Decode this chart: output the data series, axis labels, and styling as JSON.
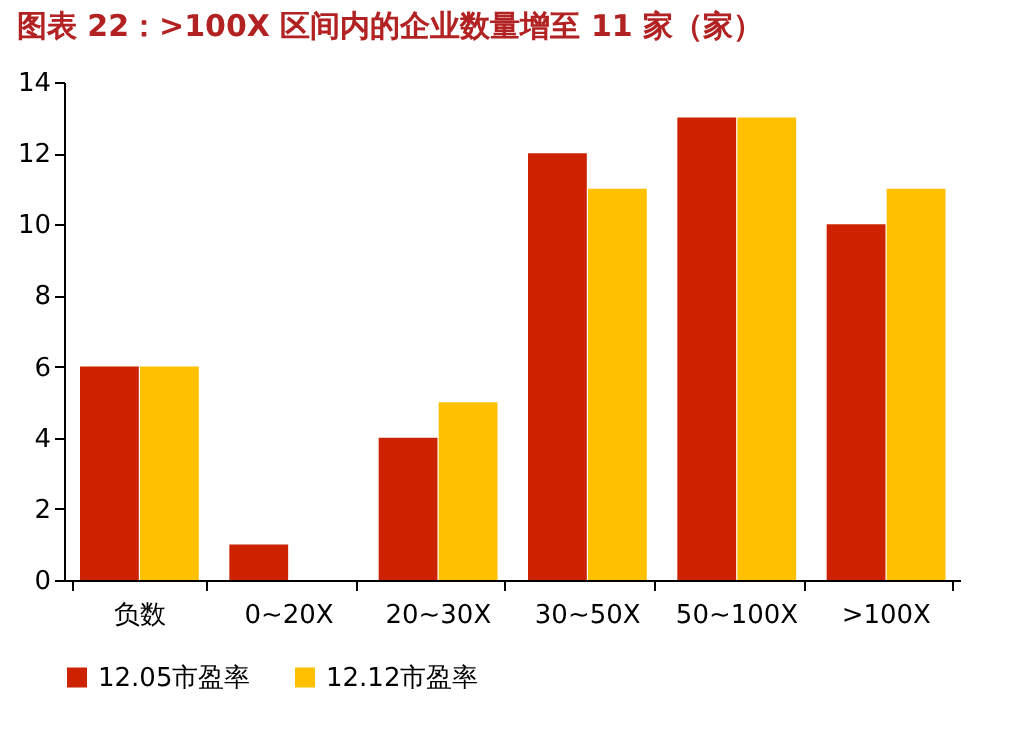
{
  "chart_data": {
    "type": "bar",
    "title": "图表 22：>100X 区间内的企业数量增至 11 家（家）",
    "categories": [
      "负数",
      "0~20X",
      "20~30X",
      "30~50X",
      "50~100X",
      ">100X"
    ],
    "series": [
      {
        "name": "12.05市盈率",
        "color": "#cc2200",
        "values": [
          6,
          1,
          4,
          12,
          13,
          10
        ]
      },
      {
        "name": "12.12市盈率",
        "color": "#ffc000",
        "values": [
          6,
          0,
          5,
          11,
          13,
          11
        ]
      }
    ],
    "ylim": [
      0,
      14
    ],
    "yticks": [
      0,
      2,
      4,
      6,
      8,
      10,
      12,
      14
    ],
    "grid": false,
    "legend": "bottom"
  }
}
